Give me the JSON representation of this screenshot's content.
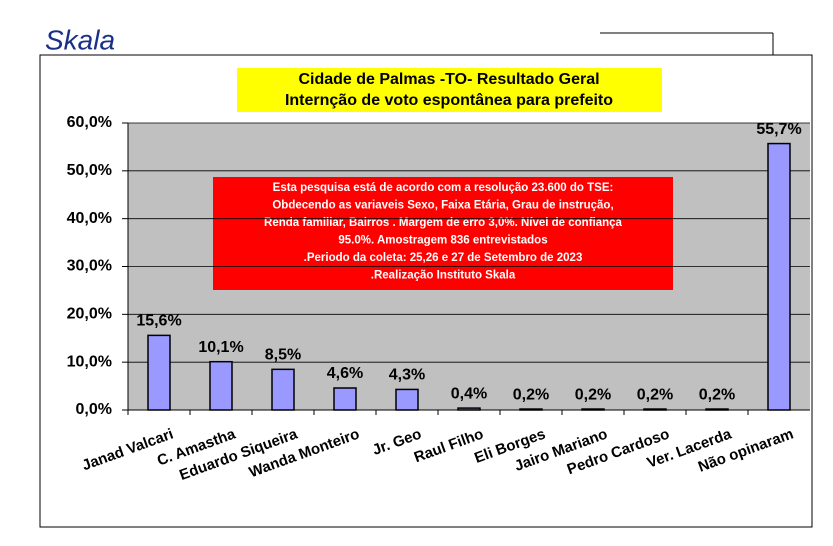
{
  "logo": "Skala",
  "chart_data": {
    "type": "bar",
    "title": "Cidade de Palmas -TO- Resultado Geral",
    "subtitle": "Internção de voto espontânea para  prefeito",
    "annotation": [
      "Esta pesquisa está de acordo com a resolução 23.600 do TSE:",
      "Obdecendo as variaveis Sexo, Faixa Etária, Grau de instrução,",
      "Renda familiar, Bairros . Margem de erro 3,0%. Nível de confiança",
      "95.0%. Amostragem 836 entrevistados",
      ".Periodo da coleta: 25,26 e 27 de Setembro de 2023",
      ".Realização Instituto Skala"
    ],
    "categories": [
      "Janad Valcari",
      "C. Amastha",
      "Eduardo Siqueira",
      "Wanda Monteiro",
      "Jr. Geo",
      "Raul Filho",
      "Eli Borges",
      "Jairo Mariano",
      "Pedro Cardoso",
      "Ver. Lacerda",
      "Não opinaram"
    ],
    "values": [
      15.6,
      10.1,
      8.5,
      4.6,
      4.3,
      0.4,
      0.2,
      0.2,
      0.2,
      0.2,
      55.7
    ],
    "value_labels": [
      "15,6%",
      "10,1%",
      "8,5%",
      "4,6%",
      "4,3%",
      "0,4%",
      "0,2%",
      "0,2%",
      "0,2%",
      "0,2%",
      "55,7%"
    ],
    "color": "#9999ff",
    "ylim": [
      0,
      60
    ],
    "yticks": [
      {
        "value": 0,
        "label": "0,0%"
      },
      {
        "value": 10,
        "label": "10,0%"
      },
      {
        "value": 20,
        "label": "20,0%"
      },
      {
        "value": 30,
        "label": "30,0%"
      },
      {
        "value": 40,
        "label": "40,0%"
      },
      {
        "value": 50,
        "label": "50,0%"
      },
      {
        "value": 60,
        "label": "60,0%"
      }
    ],
    "grid": true
  }
}
